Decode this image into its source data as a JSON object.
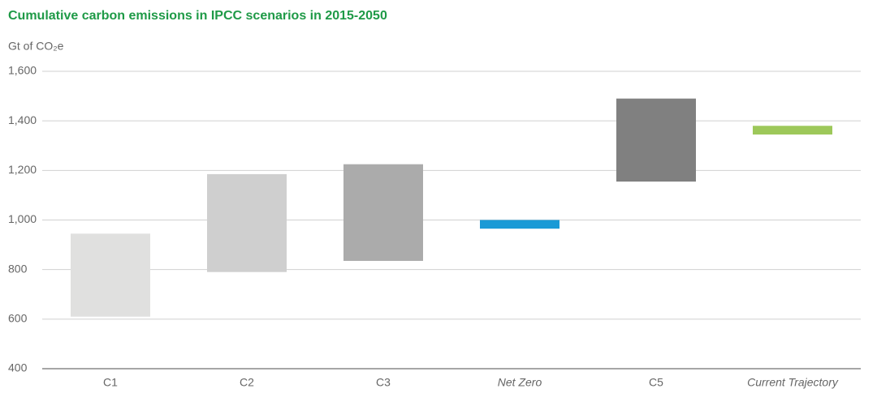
{
  "chart_data": {
    "type": "range-bar",
    "title": "Cumulative carbon emissions in IPCC scenarios in 2015-2050",
    "y_label": "Gt of CO₂e",
    "categories": [
      "C1",
      "C2",
      "C3",
      "Net Zero",
      "C5",
      "Current Trajectory"
    ],
    "label_styles": [
      "normal",
      "normal",
      "normal",
      "italic",
      "normal",
      "italic"
    ],
    "ranges": [
      [
        610,
        945
      ],
      [
        790,
        1185
      ],
      [
        835,
        1225
      ],
      [
        965,
        1000
      ],
      [
        1155,
        1490
      ],
      [
        1345,
        1380
      ]
    ],
    "colors": [
      "#e0e0df",
      "#cfcfcf",
      "#ababab",
      "#1a9ad6",
      "#808080",
      "#9dc85a"
    ],
    "ylim": [
      400,
      1600
    ],
    "yticks": [
      {
        "value": 400,
        "label": "400"
      },
      {
        "value": 600,
        "label": "600"
      },
      {
        "value": 800,
        "label": "800"
      },
      {
        "value": 1000,
        "label": "1,000"
      },
      {
        "value": 1200,
        "label": "1,200"
      },
      {
        "value": 1400,
        "label": "1,400"
      },
      {
        "value": 1600,
        "label": "1,600"
      }
    ],
    "grid": true
  }
}
